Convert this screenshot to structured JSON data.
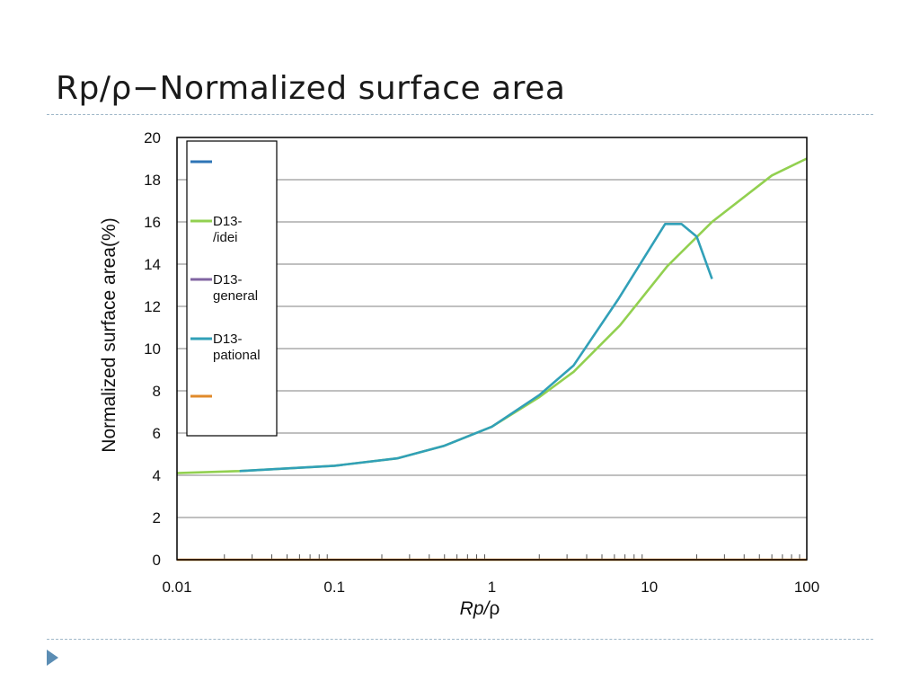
{
  "slide": {
    "title": "Rp/ρ−Normalized surface area"
  },
  "colors": {
    "rule": "#9fb7c9",
    "bullet": "#5b8db4",
    "gridline": "#9a9a9a",
    "frame": "#000000"
  },
  "chart_data": {
    "type": "line",
    "xlabel": "Rp/ρ",
    "ylabel": "Normalized surface area(%)",
    "xscale": "log",
    "xlim": [
      0.01,
      100
    ],
    "ylim": [
      0,
      20
    ],
    "yticks": [
      0,
      2,
      4,
      6,
      8,
      10,
      12,
      14,
      16,
      18,
      20
    ],
    "xticks": [
      0.01,
      0.1,
      1,
      10,
      100
    ],
    "xtick_labels": [
      "0.01",
      "0.1",
      "1",
      "10",
      "100"
    ],
    "grid": true,
    "legend_position": "top-left",
    "series": [
      {
        "name": "",
        "color": "#2e75b6",
        "x": [],
        "y": []
      },
      {
        "name": "D13-\n/idei",
        "color": "#92d050",
        "x": [
          0.01,
          0.025,
          0.1,
          0.25,
          0.5,
          1,
          2,
          3.3,
          6.5,
          13,
          25,
          60,
          100
        ],
        "y": [
          4.1,
          4.2,
          4.45,
          4.8,
          5.4,
          6.3,
          7.7,
          8.9,
          11.1,
          13.9,
          16.0,
          18.2,
          19.0
        ]
      },
      {
        "name": "D13-\ngeneral",
        "color": "#8064a2",
        "x": [],
        "y": []
      },
      {
        "name": "D13-\npational",
        "color": "#31a0b8",
        "x": [
          0.025,
          0.1,
          0.25,
          0.5,
          1,
          2,
          3.3,
          6.3,
          12.6,
          16,
          20,
          25
        ],
        "y": [
          4.2,
          4.45,
          4.8,
          5.4,
          6.3,
          7.8,
          9.2,
          12.3,
          15.9,
          15.9,
          15.3,
          13.3
        ]
      },
      {
        "name": "",
        "color": "#e08a2b",
        "x": [
          0.01,
          100
        ],
        "y": [
          0,
          0
        ]
      }
    ]
  }
}
